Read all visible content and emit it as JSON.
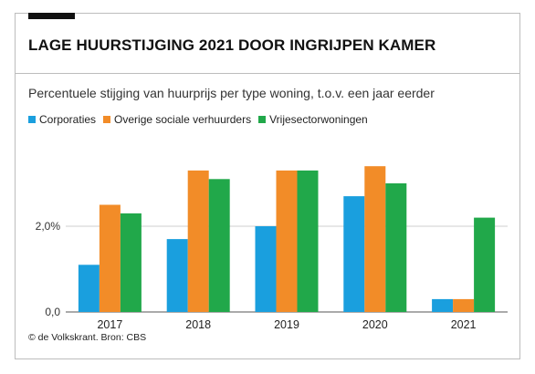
{
  "header": {
    "title": "LAGE HUURSTIJGING 2021 DOOR INGRIJPEN KAMER",
    "subtitle": "Percentuele stijging van huurprijs per type woning, t.o.v. een jaar eerder"
  },
  "footer": {
    "credit": "© de Volkskrant. Bron: CBS"
  },
  "chart_data": {
    "type": "bar",
    "title": "LAGE HUURSTIJGING 2021 DOOR INGRIJPEN KAMER",
    "subtitle": "Percentuele stijging van huurprijs per type woning, t.o.v. een jaar eerder",
    "categories": [
      "2017",
      "2018",
      "2019",
      "2020",
      "2021"
    ],
    "series": [
      {
        "name": "Corporaties",
        "color": "#1a9fde",
        "values": [
          1.1,
          1.7,
          2.0,
          2.7,
          0.3
        ]
      },
      {
        "name": "Overige sociale verhuurders",
        "color": "#f28c28",
        "values": [
          2.5,
          3.3,
          3.3,
          3.4,
          0.3
        ]
      },
      {
        "name": "Vrijesectorwoningen",
        "color": "#21a84a",
        "values": [
          2.3,
          3.1,
          3.3,
          3.0,
          2.2
        ]
      }
    ],
    "yticks": [
      0,
      2
    ],
    "ytick_labels": [
      "0,0",
      "2,0%"
    ],
    "ylim": [
      0,
      4.0
    ],
    "xlabel": "",
    "ylabel": "",
    "grid": true,
    "legend_position": "top-left"
  }
}
